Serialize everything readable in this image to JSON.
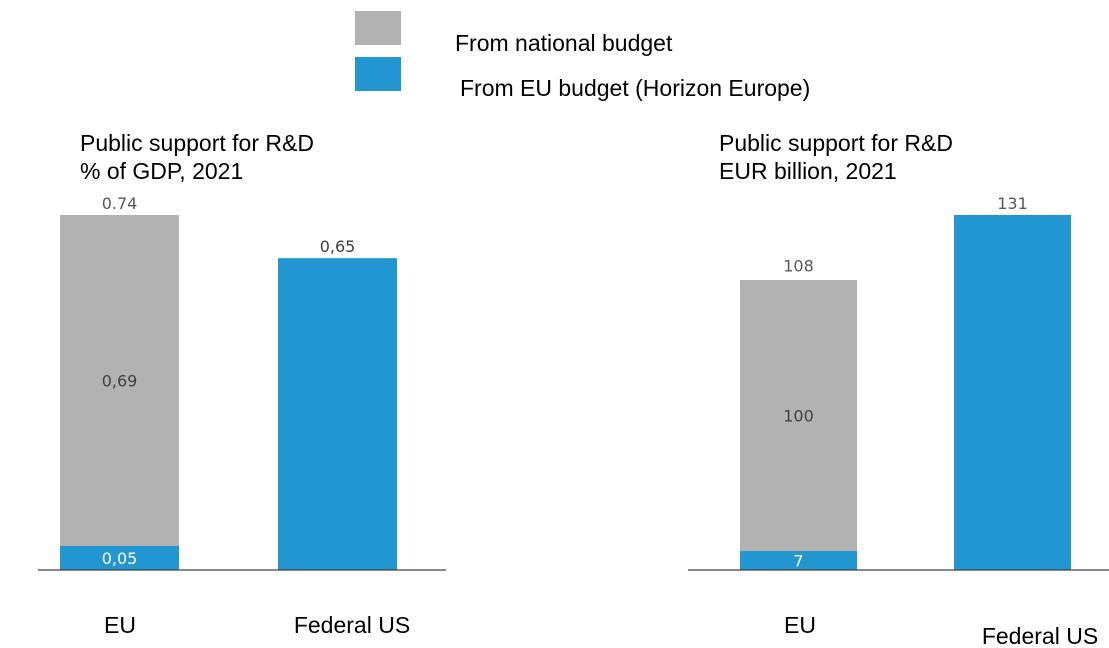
{
  "legend": {
    "items": [
      {
        "label": "From national budget",
        "color": "#b2b2b2"
      },
      {
        "label": "From EU budget (Horizon Europe)",
        "color": "#2196d0"
      }
    ]
  },
  "charts": [
    {
      "title_line1": "Public support for R&D",
      "title_line2": "% of GDP, 2021"
    },
    {
      "title_line1": "Public support for R&D",
      "title_line2": "EUR billion, 2021"
    }
  ],
  "chart_data": [
    {
      "type": "bar",
      "stacked": true,
      "title": "Public support for R&D\n% of GDP, 2021",
      "categories": [
        "EU",
        "Federal US"
      ],
      "ylim": [
        0,
        0.74
      ],
      "grid": false,
      "legend": "top",
      "series": [
        {
          "name": "From EU budget (Horizon Europe)",
          "color": "#2196d0",
          "values": [
            0.05,
            0.65
          ],
          "labels": [
            "0,05",
            "0,65"
          ]
        },
        {
          "name": "From national budget",
          "color": "#b2b2b2",
          "values": [
            0.69,
            0
          ],
          "labels": [
            "0,69",
            ""
          ]
        }
      ],
      "totals": [
        {
          "category": "EU",
          "value": 0.74,
          "label": "0.74"
        }
      ]
    },
    {
      "type": "bar",
      "stacked": true,
      "title": "Public support for R&D\nEUR billion, 2021",
      "categories": [
        "EU",
        "Federal US"
      ],
      "ylim": [
        0,
        131
      ],
      "grid": false,
      "legend": "top",
      "series": [
        {
          "name": "From EU budget (Horizon Europe)",
          "color": "#2196d0",
          "values": [
            7,
            131
          ],
          "labels": [
            "7",
            ""
          ]
        },
        {
          "name": "From national budget",
          "color": "#b2b2b2",
          "values": [
            100,
            0
          ],
          "labels": [
            "100",
            ""
          ]
        }
      ],
      "totals": [
        {
          "category": "EU",
          "value": 108,
          "label": "108"
        },
        {
          "category": "Federal US",
          "value": 131,
          "label": "131"
        }
      ]
    }
  ]
}
